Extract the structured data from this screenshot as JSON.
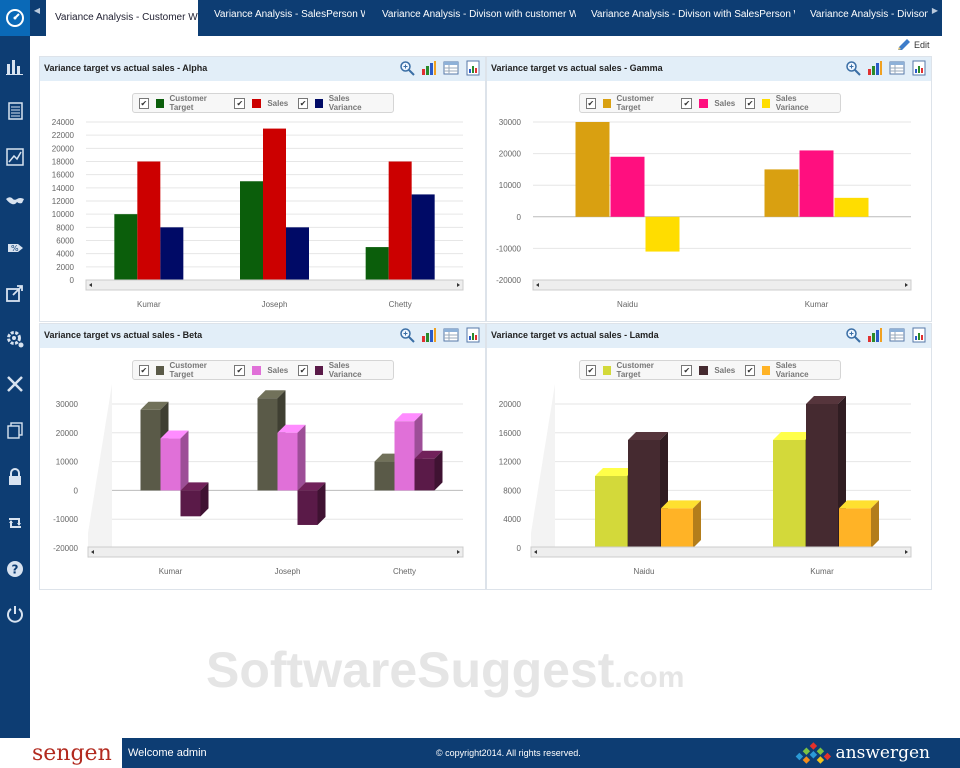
{
  "sidebar": {
    "items": [
      {
        "icon": "dashboard-icon",
        "active": true
      },
      {
        "icon": "bar-chart-icon"
      },
      {
        "icon": "report-list-icon"
      },
      {
        "icon": "line-chart-icon"
      },
      {
        "icon": "world-map-icon"
      },
      {
        "icon": "discount-tag-icon"
      },
      {
        "icon": "share-export-icon"
      },
      {
        "icon": "settings-gear-icon"
      },
      {
        "icon": "tools-icon"
      },
      {
        "icon": "copy-pages-icon"
      },
      {
        "icon": "lock-icon"
      },
      {
        "icon": "sync-icon"
      },
      {
        "icon": "help-icon"
      },
      {
        "icon": "power-icon"
      }
    ]
  },
  "tabs": [
    {
      "label": "Variance Analysis - Customer Wise",
      "active": true
    },
    {
      "label": "Variance Analysis - SalesPerson Wise"
    },
    {
      "label": "Variance Analysis - Divison with customer Wise"
    },
    {
      "label": "Variance Analysis - Divison with SalesPerson Wise"
    },
    {
      "label": "Variance Analysis - Divison wi"
    }
  ],
  "edit_label": "Edit",
  "panels": [
    {
      "title": "Variance target vs actual sales - Alpha"
    },
    {
      "title": "Variance target vs actual sales - Gamma"
    },
    {
      "title": "Variance target vs actual sales - Beta"
    },
    {
      "title": "Variance target vs actual sales - Lamda"
    }
  ],
  "chart_data": [
    {
      "type": "bar",
      "title": "Variance target vs actual sales - Alpha",
      "categories": [
        "Kumar",
        "Joseph",
        "Chetty"
      ],
      "series": [
        {
          "name": "Customer Target",
          "color": "#0b5e0b",
          "values": [
            10000,
            15000,
            5000
          ]
        },
        {
          "name": "Sales",
          "color": "#cc0000",
          "values": [
            18000,
            23000,
            18000
          ]
        },
        {
          "name": "Sales Variance",
          "color": "#000a66",
          "values": [
            8000,
            8000,
            13000
          ]
        }
      ],
      "ylim": [
        0,
        24000
      ],
      "yticks": [
        0,
        2000,
        4000,
        6000,
        8000,
        10000,
        12000,
        14000,
        16000,
        18000,
        20000,
        22000,
        24000
      ],
      "grid": true,
      "legend": "top-center"
    },
    {
      "type": "bar",
      "title": "Variance target vs actual sales - Gamma",
      "categories": [
        "Naidu",
        "Kumar"
      ],
      "series": [
        {
          "name": "Customer Target",
          "color": "#d9a011",
          "values": [
            30000,
            15000
          ]
        },
        {
          "name": "Sales",
          "color": "#ff0f7f",
          "values": [
            19000,
            21000
          ]
        },
        {
          "name": "Sales Variance",
          "color": "#ffdd00",
          "values": [
            -11000,
            6000
          ]
        }
      ],
      "ylim": [
        -20000,
        30000
      ],
      "yticks": [
        -20000,
        -10000,
        0,
        10000,
        20000,
        30000
      ],
      "grid": true,
      "legend": "top-center"
    },
    {
      "type": "bar",
      "title": "Variance target vs actual sales - Beta",
      "style": "3d",
      "categories": [
        "Kumar",
        "Joseph",
        "Chetty"
      ],
      "series": [
        {
          "name": "Customer Target",
          "color": "#5a5a48",
          "values": [
            28000,
            32000,
            10000
          ]
        },
        {
          "name": "Sales",
          "color": "#e070d8",
          "values": [
            18000,
            20000,
            24000
          ]
        },
        {
          "name": "Sales Variance",
          "color": "#5a1a48",
          "values": [
            -9000,
            -12000,
            11000
          ]
        }
      ],
      "ylim": [
        -20000,
        30000
      ],
      "yticks": [
        -20000,
        -10000,
        0,
        10000,
        20000,
        30000
      ],
      "grid": true,
      "legend": "top-center"
    },
    {
      "type": "bar",
      "title": "Variance target vs actual sales - Lamda",
      "style": "3d",
      "categories": [
        "Naidu",
        "Kumar"
      ],
      "series": [
        {
          "name": "Customer Target",
          "color": "#d3d93a",
          "values": [
            10000,
            15000
          ]
        },
        {
          "name": "Sales",
          "color": "#452a30",
          "values": [
            15000,
            20000
          ]
        },
        {
          "name": "Sales Variance",
          "color": "#ffb326",
          "values": [
            5500,
            5500
          ]
        }
      ],
      "ylim": [
        0,
        20000
      ],
      "yticks": [
        0,
        4000,
        8000,
        12000,
        16000,
        20000
      ],
      "grid": true,
      "legend": "top-center"
    }
  ],
  "footer": {
    "logo_text": "sengen",
    "welcome": "Welcome admin",
    "copyright": "© copyright2014. All rights reserved.",
    "right_logo_text": "answergen"
  },
  "watermark": {
    "main": "SoftwareSuggest",
    "suffix": ".com"
  }
}
